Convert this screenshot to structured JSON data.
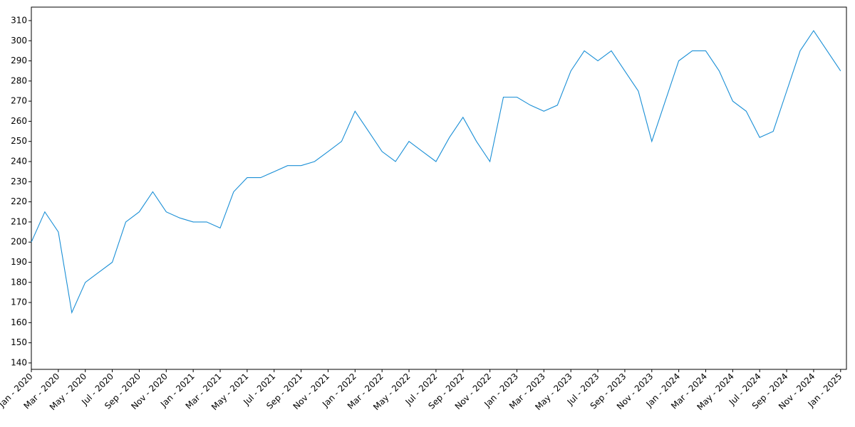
{
  "chart_data": {
    "type": "line",
    "x": [
      "2020-01",
      "2020-02",
      "2020-03",
      "2020-04",
      "2020-05",
      "2020-06",
      "2020-07",
      "2020-08",
      "2020-09",
      "2020-10",
      "2020-11",
      "2020-12",
      "2021-01",
      "2021-02",
      "2021-03",
      "2021-04",
      "2021-05",
      "2021-06",
      "2021-07",
      "2021-08",
      "2021-09",
      "2021-10",
      "2021-11",
      "2021-12",
      "2022-01",
      "2022-02",
      "2022-03",
      "2022-04",
      "2022-05",
      "2022-06",
      "2022-07",
      "2022-08",
      "2022-09",
      "2022-10",
      "2022-11",
      "2022-12",
      "2023-01",
      "2023-02",
      "2023-03",
      "2023-04",
      "2023-05",
      "2023-06",
      "2023-07",
      "2023-08",
      "2023-09",
      "2023-10",
      "2023-11",
      "2023-12",
      "2024-01",
      "2024-02",
      "2024-03",
      "2024-04",
      "2024-05",
      "2024-06",
      "2024-07",
      "2024-08",
      "2024-09",
      "2024-10",
      "2024-11",
      "2024-12",
      "2025-01"
    ],
    "series": [
      {
        "color": "#1a8fd6",
        "values": [
          200,
          215,
          205,
          165,
          180,
          185,
          190,
          210,
          215,
          225,
          215,
          212,
          210,
          210,
          207,
          225,
          232,
          232,
          235,
          238,
          238,
          240,
          245,
          250,
          265,
          255,
          245,
          240,
          250,
          245,
          240,
          252,
          262,
          250,
          240,
          272,
          272,
          268,
          265,
          268,
          285,
          295,
          290,
          295,
          285,
          275,
          250,
          270,
          290,
          295,
          295,
          285,
          270,
          265,
          252,
          255,
          275,
          295,
          305,
          295,
          285
        ]
      }
    ],
    "ylim": [
      136.8,
      316.7
    ],
    "yticks": [
      140,
      150,
      160,
      170,
      180,
      190,
      200,
      210,
      220,
      230,
      240,
      250,
      260,
      270,
      280,
      290,
      300,
      310
    ],
    "xticks": [
      {
        "value": "2020-01",
        "label": "Jan - 2020"
      },
      {
        "value": "2020-03",
        "label": "Mar - 2020"
      },
      {
        "value": "2020-05",
        "label": "May - 2020"
      },
      {
        "value": "2020-07",
        "label": "Jul - 2020"
      },
      {
        "value": "2020-09",
        "label": "Sep - 2020"
      },
      {
        "value": "2020-11",
        "label": "Nov - 2020"
      },
      {
        "value": "2021-01",
        "label": "Jan - 2021"
      },
      {
        "value": "2021-03",
        "label": "Mar - 2021"
      },
      {
        "value": "2021-05",
        "label": "May - 2021"
      },
      {
        "value": "2021-07",
        "label": "Jul - 2021"
      },
      {
        "value": "2021-09",
        "label": "Sep - 2021"
      },
      {
        "value": "2021-11",
        "label": "Nov - 2021"
      },
      {
        "value": "2022-01",
        "label": "Jan - 2022"
      },
      {
        "value": "2022-03",
        "label": "Mar - 2022"
      },
      {
        "value": "2022-05",
        "label": "May - 2022"
      },
      {
        "value": "2022-07",
        "label": "Jul - 2022"
      },
      {
        "value": "2022-09",
        "label": "Sep - 2022"
      },
      {
        "value": "2022-11",
        "label": "Nov - 2022"
      },
      {
        "value": "2023-01",
        "label": "Jan - 2023"
      },
      {
        "value": "2023-03",
        "label": "Mar - 2023"
      },
      {
        "value": "2023-05",
        "label": "May - 2023"
      },
      {
        "value": "2023-07",
        "label": "Jul - 2023"
      },
      {
        "value": "2023-09",
        "label": "Sep - 2023"
      },
      {
        "value": "2023-11",
        "label": "Nov - 2023"
      },
      {
        "value": "2024-01",
        "label": "Jan - 2024"
      },
      {
        "value": "2024-03",
        "label": "Mar - 2024"
      },
      {
        "value": "2024-05",
        "label": "May - 2024"
      },
      {
        "value": "2024-07",
        "label": "Jul - 2024"
      },
      {
        "value": "2024-09",
        "label": "Sep - 2024"
      },
      {
        "value": "2024-11",
        "label": "Nov - 2024"
      },
      {
        "value": "2025-01",
        "label": "Jan - 2025"
      }
    ]
  }
}
